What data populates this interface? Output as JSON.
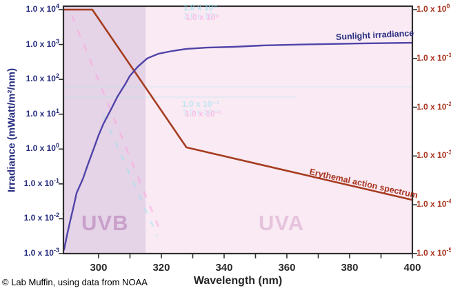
{
  "palette": {
    "navy": "#272d7f",
    "red": "#a93620",
    "axis_border": "#2e2e2e",
    "x_tick_text": "#2b2b2b",
    "uvb_label": "#c9a0ca",
    "uva_label": "#e6c3dc",
    "ghost_cyan": "#7ee0ef",
    "ghost_pink": "#ff9fe0"
  },
  "chart_data": {
    "type": "line",
    "title": "",
    "xlabel": "Wavelength (nm)",
    "ylabel_left": "Irradiance (mWatt/m²/nm)",
    "x_range": [
      288.8,
      400
    ],
    "x_axis": {
      "ticks": [
        {
          "v": 300,
          "label": "300"
        },
        {
          "v": 310
        },
        {
          "v": 320,
          "label": "320"
        },
        {
          "v": 330
        },
        {
          "v": 340,
          "label": "340"
        },
        {
          "v": 350
        },
        {
          "v": 360,
          "label": "360"
        },
        {
          "v": 370
        },
        {
          "v": 380,
          "label": "380"
        },
        {
          "v": 390
        },
        {
          "v": 400,
          "label": "400"
        }
      ]
    },
    "left_axis": {
      "scale": "log",
      "range": [
        0.001,
        10000
      ],
      "ticks": [
        {
          "m": "1.0 x 10",
          "exp": "4"
        },
        {
          "m": "1.0 x 10",
          "exp": "3"
        },
        {
          "m": "1.0 x 10",
          "exp": "2"
        },
        {
          "m": "1.0 x 10",
          "exp": "1"
        },
        {
          "m": "1.0 x 10",
          "exp": "0"
        },
        {
          "m": "1.0 x 10",
          "exp": "-1"
        },
        {
          "m": "1.0 x 10",
          "exp": "-2"
        },
        {
          "m": "1.0 x 10",
          "exp": "-3"
        }
      ]
    },
    "right_axis": {
      "scale": "log",
      "range": [
        1e-05,
        1
      ],
      "ticks": [
        {
          "m": "1.0 x 10",
          "exp": "0"
        },
        {
          "m": "1.0 x 10",
          "exp": "-1"
        },
        {
          "m": "1.0 x 10",
          "exp": "-2"
        },
        {
          "m": "1.0 x 10",
          "exp": "-3"
        },
        {
          "m": "1.0 x 10",
          "exp": "-4"
        },
        {
          "m": "1.0 x 10",
          "exp": "-5"
        }
      ]
    },
    "regions": [
      {
        "label": "UVB",
        "x": [
          288.8,
          315
        ],
        "fill": "#e5d3e7"
      },
      {
        "label": "UVA",
        "x": [
          315,
          400
        ],
        "fill": "#f9eaf4"
      }
    ],
    "series": [
      {
        "name": "Sunlight irradiance",
        "axis": "left",
        "color": "#4f43a8",
        "points": [
          [
            289,
            0.0013
          ],
          [
            290,
            0.0036
          ],
          [
            291,
            0.009
          ],
          [
            292,
            0.022
          ],
          [
            293,
            0.055
          ],
          [
            295,
            0.14
          ],
          [
            296.5,
            0.34
          ],
          [
            298.5,
            1.05
          ],
          [
            300,
            2.5
          ],
          [
            301.5,
            5.2
          ],
          [
            304,
            14
          ],
          [
            306,
            32
          ],
          [
            308.5,
            73
          ],
          [
            310,
            127
          ],
          [
            312.5,
            230
          ],
          [
            315.5,
            400
          ],
          [
            319,
            540
          ],
          [
            323.5,
            650
          ],
          [
            328,
            750
          ],
          [
            334.5,
            815
          ],
          [
            343,
            855
          ],
          [
            352,
            935
          ],
          [
            365,
            1000
          ],
          [
            383,
            1070
          ],
          [
            400,
            1120
          ]
        ]
      },
      {
        "name": "Erythemal action spectrum",
        "axis": "right",
        "color": "#a63c20",
        "points": [
          [
            288.8,
            1.0
          ],
          [
            298,
            1.0
          ],
          [
            328,
            0.0015
          ],
          [
            400,
            0.000126
          ]
        ]
      }
    ]
  },
  "artifacts": {
    "ghosts": [
      {
        "text": "1.0 x 10⁴"
      },
      {
        "text": "1.0 x 10⁴"
      },
      {
        "text": "1.0 x 10⁻¹"
      },
      {
        "text": "1.0 x 10⁻¹"
      }
    ]
  },
  "footer": {
    "credit": "© Lab Muffin, using data from NOAA"
  }
}
